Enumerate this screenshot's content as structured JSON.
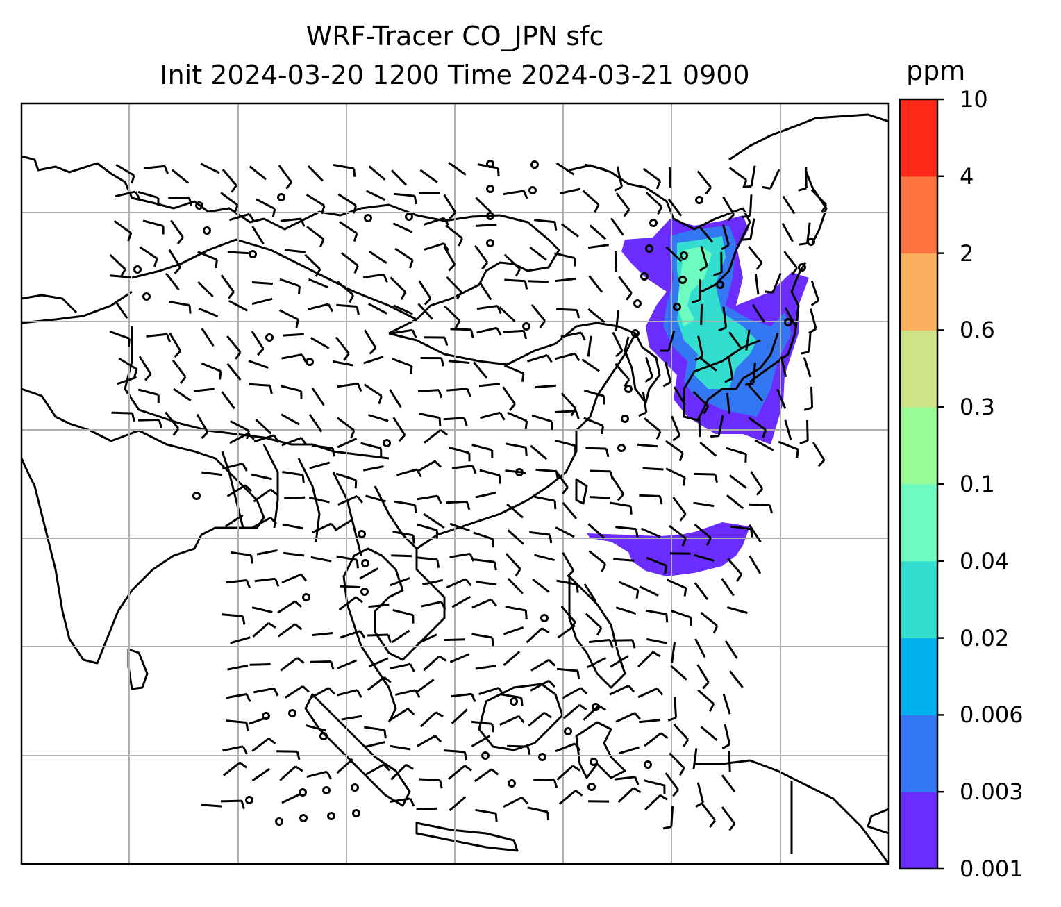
{
  "title": {
    "line1": "WRF-Tracer CO_JPN sfc",
    "line2": "Init 2024-03-20 1200 Time 2024-03-21 0900"
  },
  "colorbar": {
    "unit": "ppm",
    "levels": [
      "0.001",
      "0.003",
      "0.006",
      "0.02",
      "0.04",
      "0.1",
      "0.3",
      "0.6",
      "2",
      "4",
      "10"
    ],
    "colors": [
      "#6a2cff",
      "#3377f2",
      "#00b0ef",
      "#33ddd0",
      "#6dfbbf",
      "#99fa98",
      "#d0e388",
      "#fbb060",
      "#ff7340",
      "#ff2a1a"
    ]
  },
  "map": {
    "gridlines": true,
    "grid_color": "#b0b0b0",
    "tracer_plumes": [
      "Japan / Sea of Japan",
      "western Pacific near 20N"
    ],
    "wind_glyphs": "barbs and calm circles"
  }
}
